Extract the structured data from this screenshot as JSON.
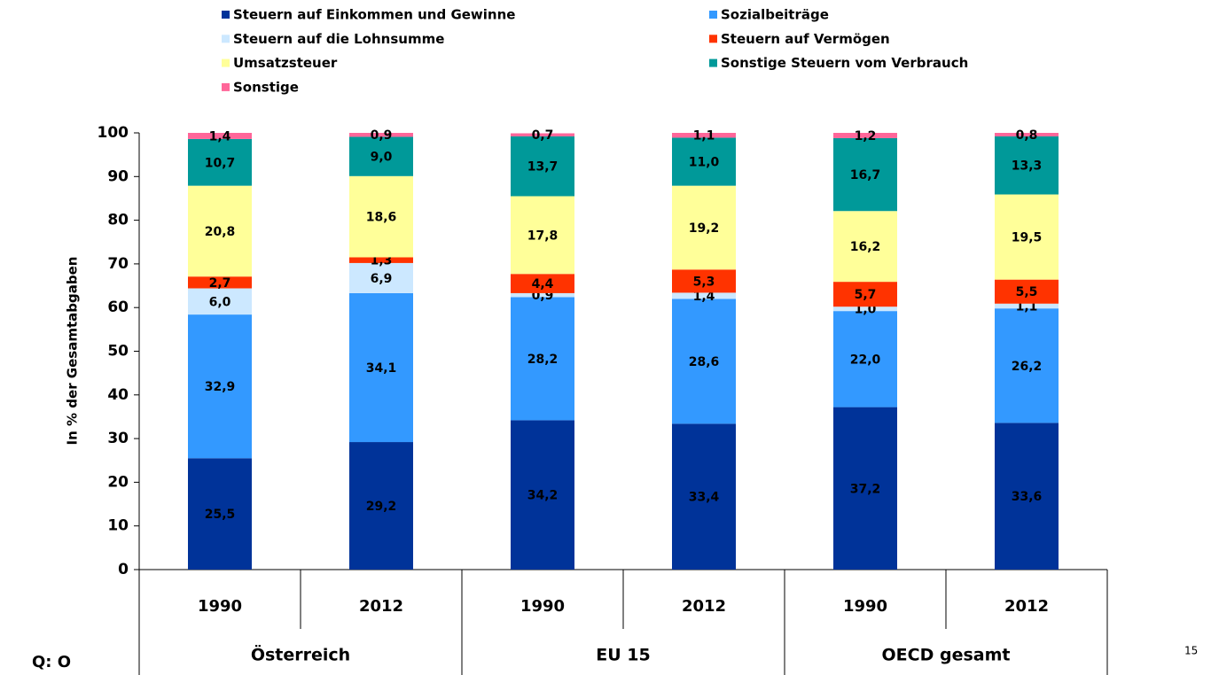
{
  "chart_data": {
    "type": "stacked_bar",
    "y_axis_label": "In % der Gesamtabgaben",
    "categories": [
      "1990",
      "2012",
      "1990",
      "2012",
      "1990",
      "2012"
    ],
    "groups": [
      "Österreich",
      "EU 15",
      "OECD gesamt"
    ],
    "ylim": [
      0,
      100
    ],
    "yticks": [
      0,
      10,
      20,
      30,
      40,
      50,
      60,
      70,
      80,
      90,
      100
    ],
    "series": [
      {
        "name": "Steuern auf Einkommen und Gewinne",
        "color": "#003399",
        "values": [
          25.5,
          29.2,
          34.2,
          33.4,
          37.2,
          33.6
        ],
        "value_labels": [
          "25,5",
          "29,2",
          "34,2",
          "33,4",
          "37,2",
          "33,6"
        ]
      },
      {
        "name": "Sozialbeiträge",
        "color": "#3399ff",
        "values": [
          32.9,
          34.1,
          28.2,
          28.6,
          22.0,
          26.2
        ],
        "value_labels": [
          "32,9",
          "34,1",
          "28,2",
          "28,6",
          "22,0",
          "26,2"
        ]
      },
      {
        "name": "Steuern auf die Lohnsumme",
        "color": "#cce8ff",
        "values": [
          6.0,
          6.9,
          0.9,
          1.4,
          1.0,
          1.1
        ],
        "value_labels": [
          "6,0",
          "6,9",
          "0,9",
          "1,4",
          "1,0",
          "1,1"
        ]
      },
      {
        "name": "Steuern auf Vermögen",
        "color": "#ff3300",
        "values": [
          2.7,
          1.3,
          4.4,
          5.3,
          5.7,
          5.5
        ],
        "value_labels": [
          "2,7",
          "1,3",
          "4,4",
          "5,3",
          "5,7",
          "5,5"
        ]
      },
      {
        "name": "Umsatzsteuer",
        "color": "#ffff99",
        "values": [
          20.8,
          18.6,
          17.8,
          19.2,
          16.2,
          19.5
        ],
        "value_labels": [
          "20,8",
          "18,6",
          "17,8",
          "19,2",
          "16,2",
          "19,5"
        ]
      },
      {
        "name": "Sonstige Steuern vom Verbrauch",
        "color": "#009999",
        "values": [
          10.7,
          9.0,
          13.7,
          11.0,
          16.7,
          13.3
        ],
        "value_labels": [
          "10,7",
          "9,0",
          "13,7",
          "11,0",
          "16,7",
          "13,3"
        ]
      },
      {
        "name": "Sonstige",
        "color": "#ff6699",
        "values": [
          1.4,
          0.9,
          0.7,
          1.1,
          1.2,
          0.8
        ],
        "value_labels": [
          "1,4",
          "0,9",
          "0,7",
          "1,1",
          "1,2",
          "0,8"
        ]
      }
    ]
  },
  "footer": {
    "source": "Q: O",
    "page": "15"
  }
}
